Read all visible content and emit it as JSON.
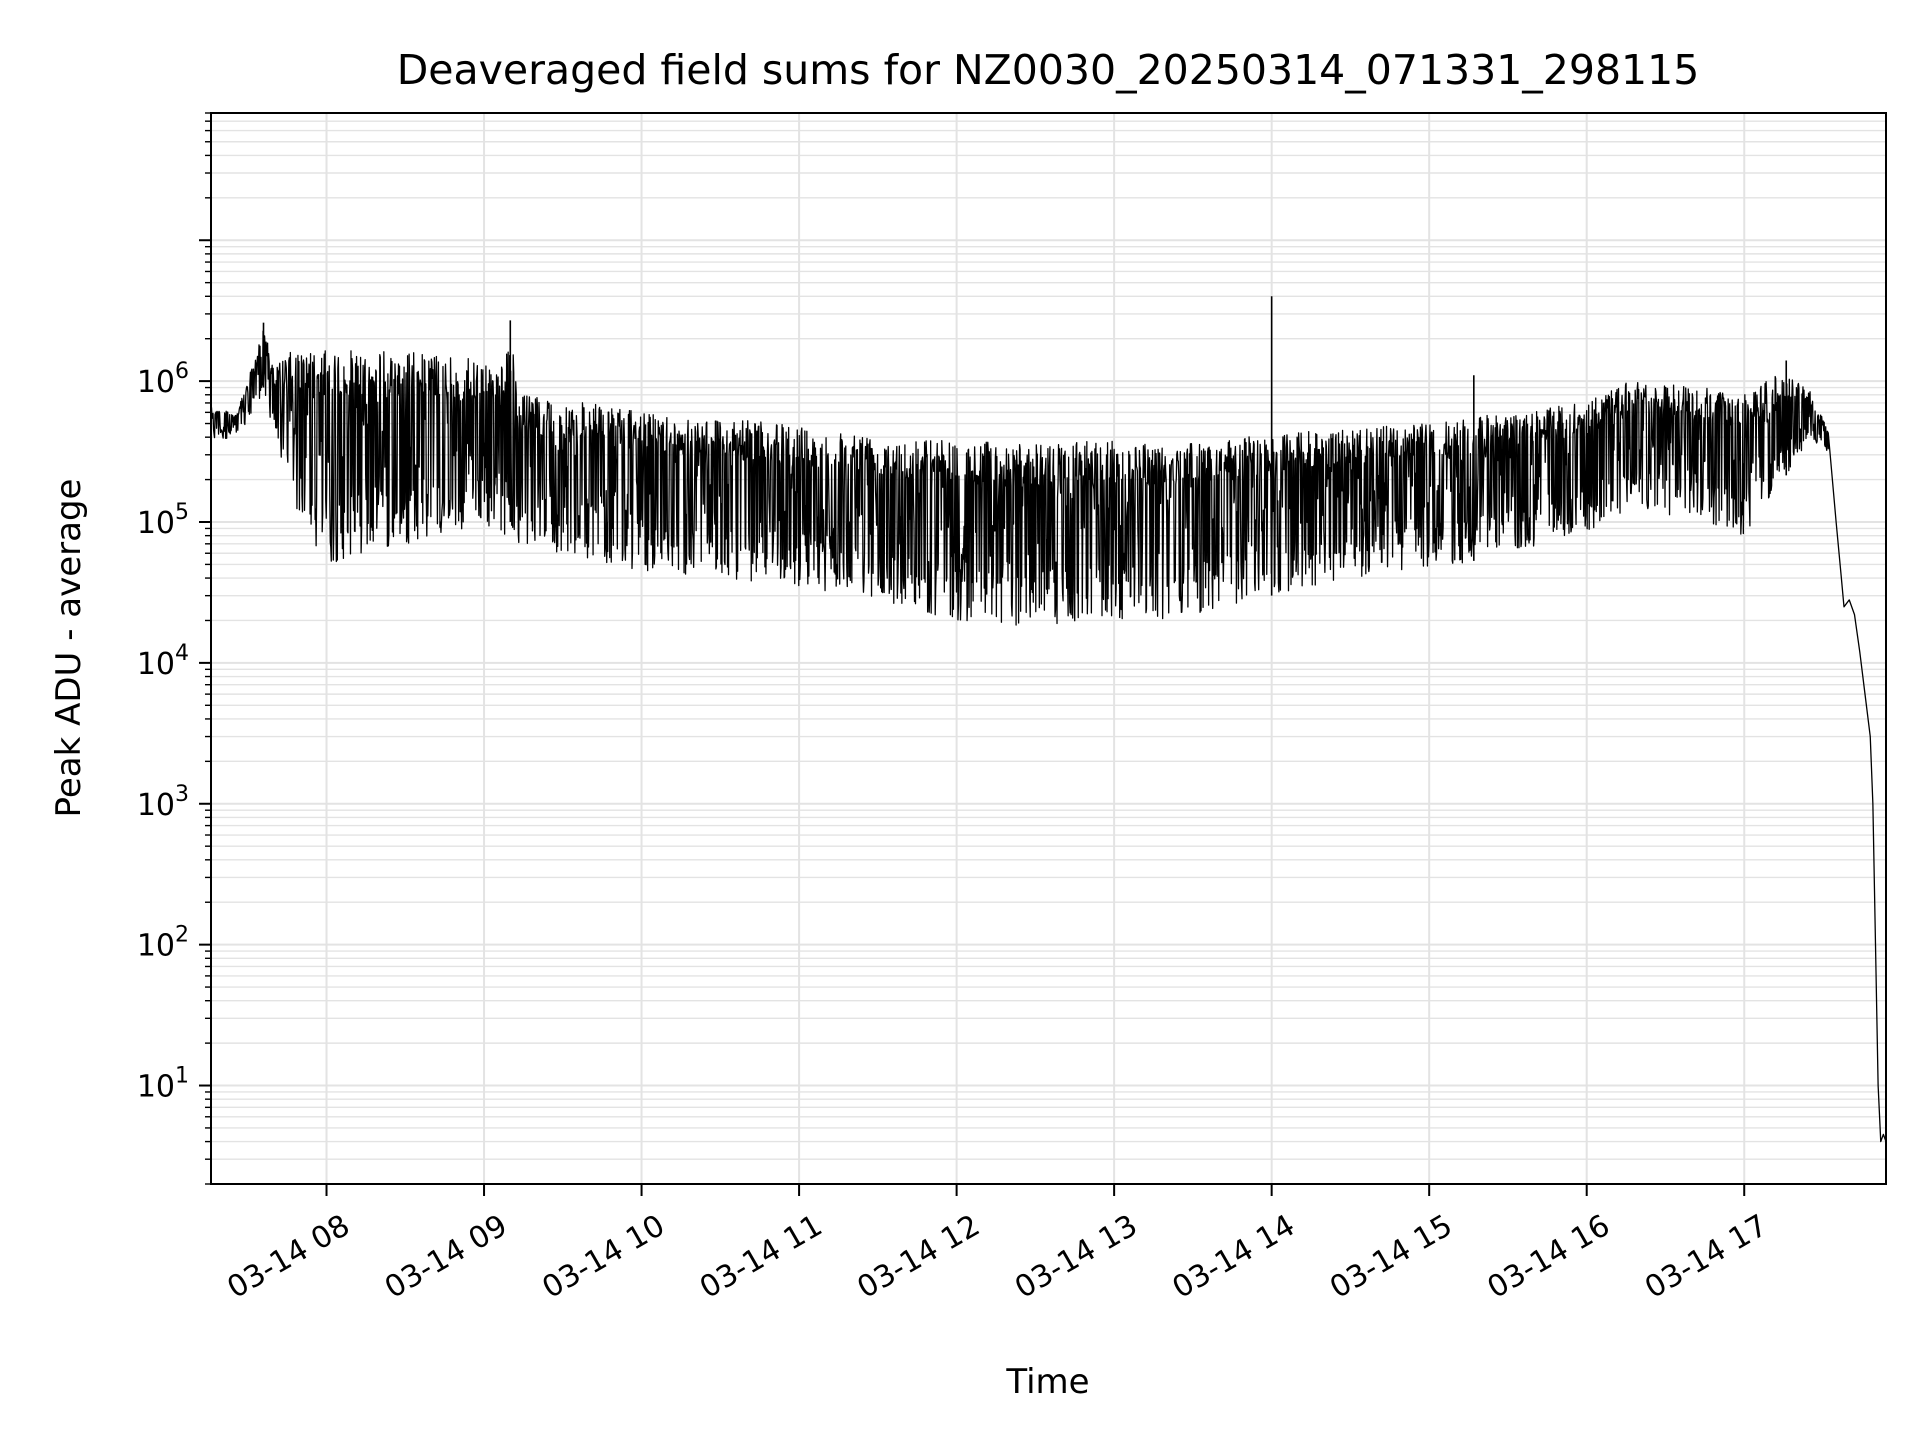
{
  "chart_data": {
    "type": "line",
    "title": "Deaveraged field sums for NZ0030_20250314_071331_298115",
    "xlabel": "Time",
    "ylabel": "Peak ADU - average",
    "yscale": "log",
    "ylim": [
      2,
      80000000
    ],
    "xlim": [
      "03-14 07:16",
      "03-14 17:54"
    ],
    "grid": true,
    "line_color": "#000000",
    "grid_color": "#e3e3e3",
    "x_ticks": [
      {
        "label": "03-14 08",
        "t": "03-14 08:00"
      },
      {
        "label": "03-14 09",
        "t": "03-14 09:00"
      },
      {
        "label": "03-14 10",
        "t": "03-14 10:00"
      },
      {
        "label": "03-14 11",
        "t": "03-14 11:00"
      },
      {
        "label": "03-14 12",
        "t": "03-14 12:00"
      },
      {
        "label": "03-14 13",
        "t": "03-14 13:00"
      },
      {
        "label": "03-14 14",
        "t": "03-14 14:00"
      },
      {
        "label": "03-14 15",
        "t": "03-14 15:00"
      },
      {
        "label": "03-14 16",
        "t": "03-14 16:00"
      },
      {
        "label": "03-14 17",
        "t": "03-14 17:00"
      }
    ],
    "y_ticks": [
      {
        "base": "10",
        "exp": "1",
        "value": 10
      },
      {
        "base": "10",
        "exp": "2",
        "value": 100
      },
      {
        "base": "10",
        "exp": "3",
        "value": 1000
      },
      {
        "base": "10",
        "exp": "4",
        "value": 10000
      },
      {
        "base": "10",
        "exp": "5",
        "value": 100000
      },
      {
        "base": "10",
        "exp": "6",
        "value": 1000000
      }
    ],
    "envelope": [
      {
        "t": "03-14 07:16",
        "upper": 650000,
        "lower": 380000
      },
      {
        "t": "03-14 07:26",
        "upper": 600000,
        "lower": 400000
      },
      {
        "t": "03-14 07:33",
        "upper": 1500000,
        "lower": 600000
      },
      {
        "t": "03-14 07:36",
        "upper": 2500000,
        "lower": 900000
      },
      {
        "t": "03-14 07:40",
        "upper": 1200000,
        "lower": 400000
      },
      {
        "t": "03-14 07:45",
        "upper": 1600000,
        "lower": 200000
      },
      {
        "t": "03-14 07:50",
        "upper": 1600000,
        "lower": 100000
      },
      {
        "t": "03-14 08:00",
        "upper": 1650000,
        "lower": 50000
      },
      {
        "t": "03-14 08:30",
        "upper": 1650000,
        "lower": 70000
      },
      {
        "t": "03-14 09:00",
        "upper": 1400000,
        "lower": 90000
      },
      {
        "t": "03-14 09:08",
        "upper": 1300000,
        "lower": 80000
      },
      {
        "t": "03-14 09:10",
        "upper": 2600000,
        "lower": 100000
      },
      {
        "t": "03-14 09:13",
        "upper": 800000,
        "lower": 70000
      },
      {
        "t": "03-14 09:30",
        "upper": 750000,
        "lower": 60000
      },
      {
        "t": "03-14 10:00",
        "upper": 600000,
        "lower": 45000
      },
      {
        "t": "03-14 10:30",
        "upper": 550000,
        "lower": 40000
      },
      {
        "t": "03-14 11:00",
        "upper": 480000,
        "lower": 35000
      },
      {
        "t": "03-14 11:30",
        "upper": 420000,
        "lower": 28000
      },
      {
        "t": "03-14 12:00",
        "upper": 380000,
        "lower": 20000
      },
      {
        "t": "03-14 12:30",
        "upper": 360000,
        "lower": 18000
      },
      {
        "t": "03-14 13:00",
        "upper": 380000,
        "lower": 20000
      },
      {
        "t": "03-14 13:30",
        "upper": 360000,
        "lower": 21000
      },
      {
        "t": "03-14 14:00",
        "upper": 420000,
        "lower": 30000
      },
      {
        "t": "03-14 14:30",
        "upper": 460000,
        "lower": 40000
      },
      {
        "t": "03-14 15:00",
        "upper": 500000,
        "lower": 45000
      },
      {
        "t": "03-14 15:30",
        "upper": 600000,
        "lower": 60000
      },
      {
        "t": "03-14 16:00",
        "upper": 700000,
        "lower": 80000
      },
      {
        "t": "03-14 16:15",
        "upper": 1000000,
        "lower": 120000
      },
      {
        "t": "03-14 16:45",
        "upper": 900000,
        "lower": 100000
      },
      {
        "t": "03-14 17:00",
        "upper": 800000,
        "lower": 80000
      },
      {
        "t": "03-14 17:15",
        "upper": 1200000,
        "lower": 200000
      },
      {
        "t": "03-14 17:25",
        "upper": 850000,
        "lower": 400000
      },
      {
        "t": "03-14 17:32",
        "upper": 450000,
        "lower": 300000
      }
    ],
    "spikes": [
      {
        "t": "03-14 07:36",
        "value": 2600000
      },
      {
        "t": "03-14 09:10",
        "value": 2700000
      },
      {
        "t": "03-14 14:00",
        "value": 4000000
      },
      {
        "t": "03-14 15:17",
        "value": 1100000
      },
      {
        "t": "03-14 17:16",
        "value": 1400000
      }
    ],
    "tail": [
      {
        "t": "03-14 17:32",
        "value": 430000
      },
      {
        "t": "03-14 17:35",
        "value": 100000
      },
      {
        "t": "03-14 17:37",
        "value": 40000
      },
      {
        "t": "03-14 17:38",
        "value": 25000
      },
      {
        "t": "03-14 17:40",
        "value": 28000
      },
      {
        "t": "03-14 17:42",
        "value": 22000
      },
      {
        "t": "03-14 17:44",
        "value": 12000
      },
      {
        "t": "03-14 17:46",
        "value": 6000
      },
      {
        "t": "03-14 17:48",
        "value": 3000
      },
      {
        "t": "03-14 17:49",
        "value": 1000
      },
      {
        "t": "03-14 17:50",
        "value": 100
      },
      {
        "t": "03-14 17:51",
        "value": 10
      },
      {
        "t": "03-14 17:52",
        "value": 4
      },
      {
        "t": "03-14 17:53",
        "value": 4.5
      },
      {
        "t": "03-14 17:54",
        "value": 4
      }
    ]
  }
}
